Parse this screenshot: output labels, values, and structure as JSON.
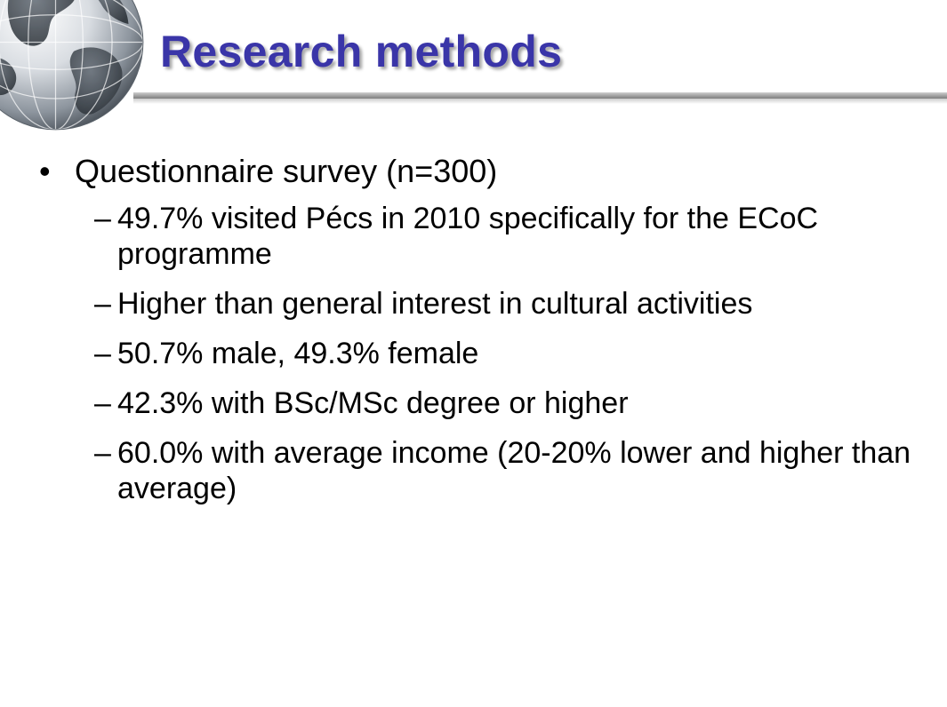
{
  "slide": {
    "title": "Research methods",
    "bullets": [
      {
        "marker": "•",
        "text": "Questionnaire survey (n=300)",
        "subitems": [
          {
            "marker": "–",
            "text": "49.7% visited Pécs in 2010 specifically for the ECoC programme"
          },
          {
            "marker": "–",
            "text": "Higher than general interest in cultural activities"
          },
          {
            "marker": "–",
            "text": "50.7% male, 49.3% female"
          },
          {
            "marker": "–",
            "text": "42.3% with BSc/MSc degree or higher"
          },
          {
            "marker": "–",
            "text": "60.0% with average income (20-20% lower and higher than average)"
          }
        ]
      }
    ]
  },
  "colors": {
    "title": "#3a35a8",
    "text": "#000000",
    "rule": "#a9a9a9"
  },
  "icons": {
    "globe": "globe-icon"
  }
}
